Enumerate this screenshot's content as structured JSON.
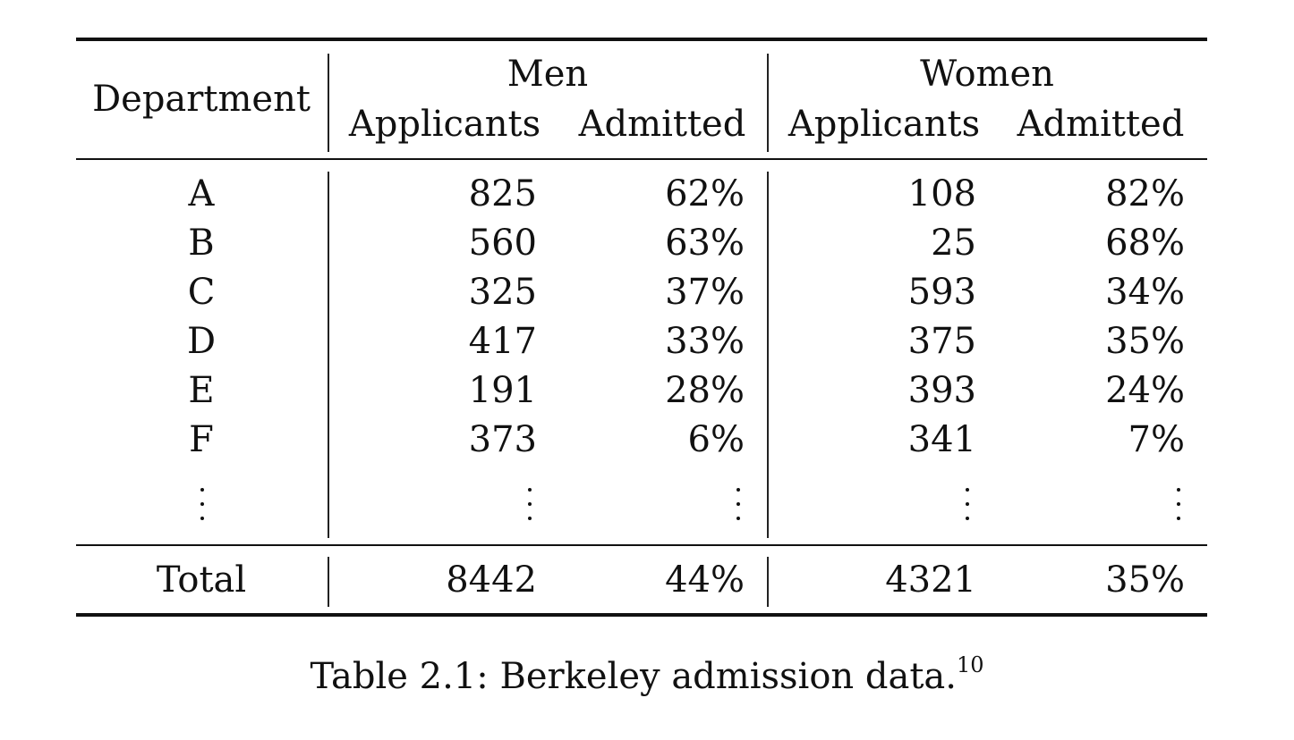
{
  "table": {
    "header": {
      "department": "Department",
      "men": "Men",
      "women": "Women",
      "men_applicants": "Applicants",
      "men_admitted": "Admitted",
      "women_applicants": "Applicants",
      "women_admitted": "Admitted"
    },
    "rows": [
      {
        "department": "A",
        "men_applicants": "825",
        "men_admitted": "62%",
        "women_applicants": "108",
        "women_admitted": "82%"
      },
      {
        "department": "B",
        "men_applicants": "560",
        "men_admitted": "63%",
        "women_applicants": "25",
        "women_admitted": "68%"
      },
      {
        "department": "C",
        "men_applicants": "325",
        "men_admitted": "37%",
        "women_applicants": "593",
        "women_admitted": "34%"
      },
      {
        "department": "D",
        "men_applicants": "417",
        "men_admitted": "33%",
        "women_applicants": "375",
        "women_admitted": "35%"
      },
      {
        "department": "E",
        "men_applicants": "191",
        "men_admitted": "28%",
        "women_applicants": "393",
        "women_admitted": "24%"
      },
      {
        "department": "F",
        "men_applicants": "373",
        "men_admitted": "6%",
        "women_applicants": "341",
        "women_admitted": "7%"
      }
    ],
    "total": {
      "department": "Total",
      "men_applicants": "8442",
      "men_admitted": "44%",
      "women_applicants": "4321",
      "women_admitted": "35%"
    }
  },
  "caption": {
    "text": "Table 2.1: Berkeley admission data.",
    "footnote": "10"
  }
}
